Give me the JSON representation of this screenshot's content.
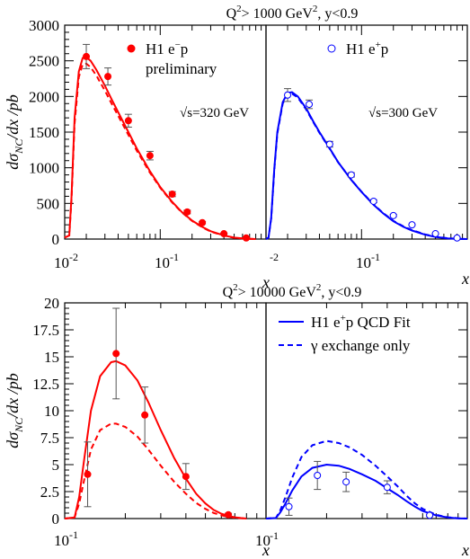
{
  "colors": {
    "red": "#ff0000",
    "blue": "#0000ff",
    "err": "#555555"
  },
  "chart_data": [
    {
      "type": "line",
      "panel": "top-left",
      "title_pre": "Q",
      "title_sup": "2",
      "title_mid": "> 1000 GeV",
      "title_sup2": "2",
      "title_post": ", y<0.9",
      "xlabel": "x",
      "ylabel": "dσ_NC/dx /pb",
      "xscale": "log",
      "xlim": [
        0.0125,
        1.0
      ],
      "ylim": [
        0,
        3000
      ],
      "yticks": [
        0,
        500,
        1000,
        1500,
        2000,
        2500,
        3000
      ],
      "yticklabels": [
        "0",
        "500",
        "1000",
        "1500",
        "2000",
        "2500",
        "3000"
      ],
      "xtick_labels": [
        "10",
        "-2",
        "10",
        "-1"
      ],
      "legend": {
        "marker": "filled",
        "name_main": "H1 e",
        "name_sup": "−",
        "name_tail": "p",
        "line2": "preliminary"
      },
      "annotation": "√s=320 GeV",
      "series": [
        {
          "name": "H1 e−p preliminary",
          "kind": "points",
          "marker": "filled",
          "x": [
            0.02,
            0.032,
            0.05,
            0.08,
            0.13,
            0.18,
            0.25,
            0.4,
            0.65
          ],
          "y": [
            2560,
            2280,
            1660,
            1170,
            630,
            380,
            230,
            75,
            15
          ],
          "yerr": [
            170,
            120,
            90,
            60,
            35,
            25,
            15,
            8,
            3
          ]
        },
        {
          "kind": "curve",
          "style": "solid",
          "x": [
            0.0125,
            0.0138,
            0.0145,
            0.0155,
            0.017,
            0.0185,
            0.02,
            0.022,
            0.025,
            0.03,
            0.035,
            0.04,
            0.05,
            0.06,
            0.08,
            0.1,
            0.13,
            0.16,
            0.2,
            0.25,
            0.3,
            0.4,
            0.5,
            0.65,
            0.8
          ],
          "y": [
            20,
            50,
            600,
            1700,
            2350,
            2540,
            2550,
            2500,
            2370,
            2150,
            1950,
            1780,
            1500,
            1270,
            950,
            730,
            520,
            380,
            260,
            170,
            110,
            50,
            20,
            5,
            0
          ]
        },
        {
          "kind": "curve",
          "style": "dashed",
          "x": [
            0.0125,
            0.0138,
            0.0145,
            0.0155,
            0.017,
            0.0185,
            0.02,
            0.022,
            0.025,
            0.03,
            0.035,
            0.04,
            0.05,
            0.06,
            0.08,
            0.1,
            0.13,
            0.16,
            0.2,
            0.25,
            0.3,
            0.4,
            0.5,
            0.65,
            0.8
          ],
          "y": [
            20,
            50,
            560,
            1620,
            2270,
            2450,
            2460,
            2410,
            2290,
            2080,
            1890,
            1730,
            1460,
            1240,
            930,
            720,
            510,
            375,
            255,
            165,
            105,
            48,
            18,
            4,
            0
          ]
        }
      ]
    },
    {
      "type": "line",
      "panel": "top-right",
      "xscale": "log",
      "xlim": [
        0.0125,
        1.0
      ],
      "ylim": [
        0,
        3000
      ],
      "xtick_labels": [
        "-2",
        "10",
        "-1"
      ],
      "legend": {
        "marker": "open",
        "name_main": "H1 e",
        "name_sup": "+",
        "name_tail": "p"
      },
      "annotation": "√s=300 GeV",
      "series": [
        {
          "name": "H1 e+p",
          "kind": "points",
          "marker": "open",
          "x": [
            0.02,
            0.032,
            0.05,
            0.08,
            0.13,
            0.2,
            0.3,
            0.5,
            0.8
          ],
          "y": [
            2020,
            1890,
            1330,
            900,
            530,
            330,
            200,
            75,
            15
          ],
          "yerr": [
            90,
            60,
            40,
            30,
            20,
            15,
            10,
            6,
            3
          ]
        },
        {
          "kind": "curve",
          "style": "solid",
          "x": [
            0.0125,
            0.0132,
            0.014,
            0.015,
            0.016,
            0.018,
            0.02,
            0.022,
            0.025,
            0.03,
            0.035,
            0.04,
            0.05,
            0.06,
            0.08,
            0.1,
            0.13,
            0.16,
            0.2,
            0.25,
            0.3,
            0.4,
            0.5,
            0.65,
            0.8,
            1.0
          ],
          "y": [
            0,
            20,
            300,
            1000,
            1500,
            1920,
            2050,
            2060,
            2000,
            1830,
            1650,
            1500,
            1270,
            1080,
            830,
            660,
            480,
            360,
            250,
            170,
            120,
            60,
            30,
            10,
            3,
            0
          ]
        },
        {
          "kind": "curve",
          "style": "dashed",
          "x": [
            0.0125,
            0.0132,
            0.014,
            0.015,
            0.016,
            0.018,
            0.02,
            0.022,
            0.025,
            0.03,
            0.035,
            0.04,
            0.05,
            0.06,
            0.08,
            0.1,
            0.13,
            0.16,
            0.2,
            0.25,
            0.3,
            0.4,
            0.5,
            0.65,
            0.8,
            1.0
          ],
          "y": [
            0,
            20,
            290,
            980,
            1480,
            1900,
            2030,
            2040,
            1985,
            1815,
            1640,
            1490,
            1265,
            1078,
            832,
            664,
            486,
            366,
            256,
            176,
            126,
            64,
            33,
            12,
            4,
            0
          ]
        }
      ]
    },
    {
      "type": "line",
      "panel": "bottom-left",
      "title_pre": "Q",
      "title_sup": "2",
      "title_mid": "> 10000 GeV",
      "title_sup2": "2",
      "title_post": ", y<0.9",
      "xlabel": "x",
      "ylabel": "dσ_NC/dx /pb",
      "xscale": "log",
      "xlim": [
        0.1,
        1.0
      ],
      "ylim": [
        0,
        20
      ],
      "yticks": [
        0,
        2.5,
        5,
        7.5,
        10,
        12.5,
        15,
        17.5,
        20
      ],
      "yticklabels": [
        "0",
        "2.5",
        "5",
        "7.5",
        "10",
        "12.5",
        "15",
        "17.5",
        "20"
      ],
      "xtick_labels": [
        "10",
        "-1"
      ],
      "series": [
        {
          "name": "H1 e−p preliminary",
          "kind": "points",
          "marker": "filled",
          "x": [
            0.13,
            0.18,
            0.25,
            0.4,
            0.65
          ],
          "y": [
            4.1,
            15.3,
            9.6,
            3.9,
            0.35
          ],
          "yerr": [
            3.0,
            4.2,
            2.6,
            1.2,
            0.15
          ]
        },
        {
          "kind": "curve",
          "style": "solid",
          "x": [
            0.1,
            0.112,
            0.118,
            0.125,
            0.135,
            0.15,
            0.17,
            0.18,
            0.2,
            0.23,
            0.26,
            0.3,
            0.35,
            0.4,
            0.45,
            0.5,
            0.55,
            0.6,
            0.65,
            0.7,
            0.75,
            0.8
          ],
          "y": [
            0,
            0.1,
            2.0,
            5.5,
            10.0,
            13.2,
            14.5,
            14.6,
            14.2,
            12.8,
            10.8,
            8.2,
            5.6,
            3.7,
            2.3,
            1.4,
            0.8,
            0.45,
            0.25,
            0.12,
            0.05,
            0
          ]
        },
        {
          "kind": "curve",
          "style": "dashed",
          "x": [
            0.1,
            0.112,
            0.118,
            0.125,
            0.135,
            0.15,
            0.17,
            0.18,
            0.2,
            0.23,
            0.26,
            0.3,
            0.35,
            0.4,
            0.45,
            0.5,
            0.55,
            0.6,
            0.65,
            0.7,
            0.75,
            0.8
          ],
          "y": [
            0,
            0.1,
            1.4,
            3.6,
            6.4,
            8.2,
            8.8,
            8.8,
            8.5,
            7.6,
            6.4,
            4.9,
            3.4,
            2.3,
            1.45,
            0.9,
            0.52,
            0.3,
            0.16,
            0.08,
            0.03,
            0
          ]
        }
      ]
    },
    {
      "type": "line",
      "panel": "bottom-right",
      "xscale": "log",
      "xlim": [
        0.1,
        1.0
      ],
      "ylim": [
        0,
        20
      ],
      "xtick_labels": [
        "-1"
      ],
      "legend": [
        {
          "style": "solid",
          "name_main": "H1 e",
          "name_sup": "+",
          "name_tail": "p QCD Fit"
        },
        {
          "style": "dashed",
          "name_main": "γ exchange only"
        }
      ],
      "series": [
        {
          "name": "H1 e+p",
          "kind": "points",
          "marker": "open",
          "x": [
            0.13,
            0.18,
            0.25,
            0.4,
            0.65
          ],
          "y": [
            1.1,
            4.0,
            3.4,
            2.9,
            0.3
          ],
          "yerr": [
            0.8,
            1.3,
            0.9,
            0.6,
            0.1
          ]
        },
        {
          "kind": "curve",
          "style": "solid",
          "x": [
            0.1,
            0.112,
            0.118,
            0.125,
            0.135,
            0.15,
            0.17,
            0.2,
            0.23,
            0.26,
            0.3,
            0.35,
            0.4,
            0.45,
            0.5,
            0.55,
            0.6,
            0.7,
            0.8,
            0.9,
            1.0
          ],
          "y": [
            0,
            0.05,
            0.6,
            1.4,
            2.6,
            3.9,
            4.7,
            5.0,
            4.9,
            4.6,
            4.1,
            3.5,
            2.8,
            2.2,
            1.6,
            1.1,
            0.7,
            0.3,
            0.1,
            0.02,
            0
          ]
        },
        {
          "kind": "curve",
          "style": "dashed",
          "x": [
            0.1,
            0.112,
            0.118,
            0.125,
            0.135,
            0.15,
            0.17,
            0.2,
            0.23,
            0.26,
            0.3,
            0.35,
            0.4,
            0.45,
            0.5,
            0.55,
            0.6,
            0.7,
            0.8,
            0.9,
            1.0
          ],
          "y": [
            0,
            0.05,
            0.8,
            2.0,
            3.8,
            5.7,
            6.8,
            7.2,
            7.0,
            6.6,
            5.9,
            4.9,
            3.9,
            3.0,
            2.1,
            1.4,
            0.9,
            0.35,
            0.12,
            0.03,
            0
          ]
        }
      ]
    }
  ]
}
